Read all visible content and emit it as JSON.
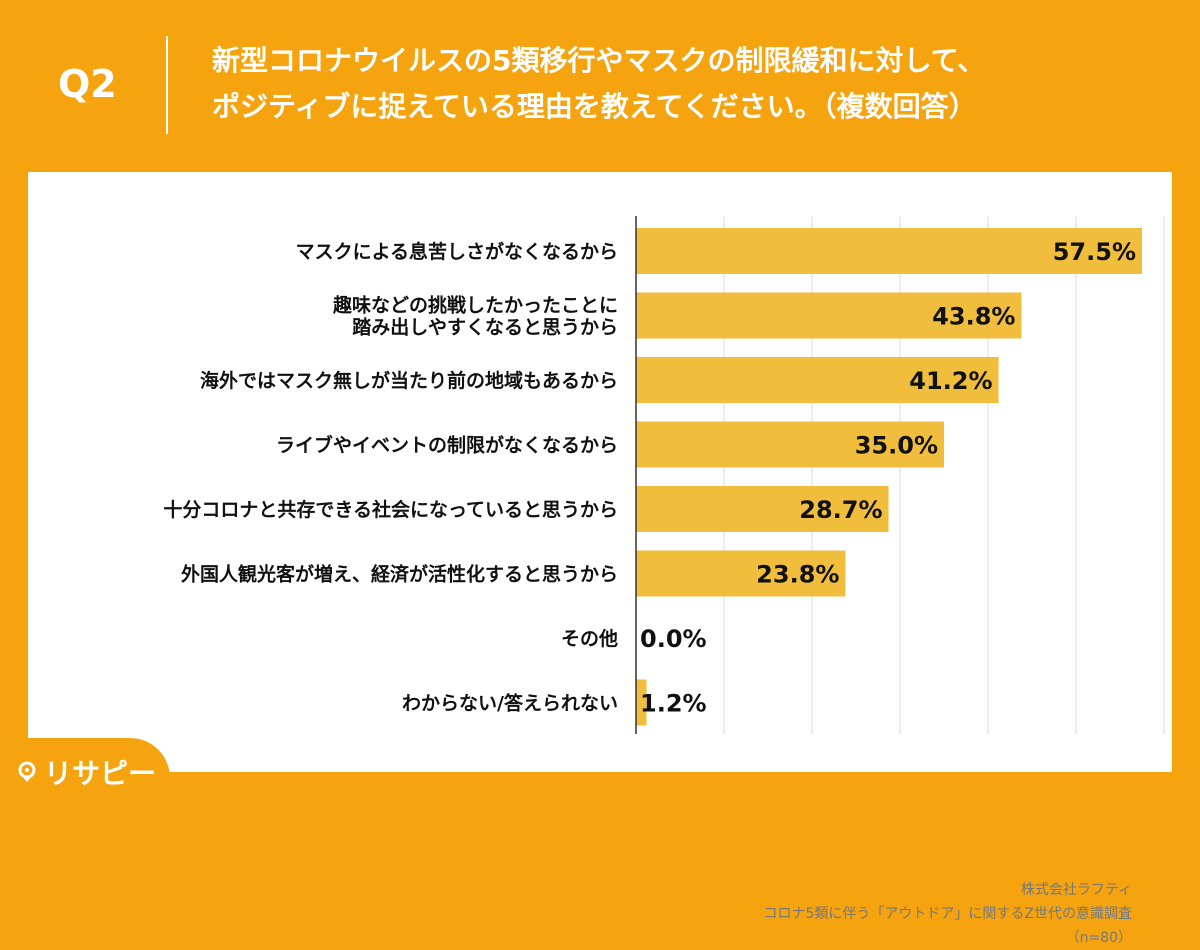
{
  "header": {
    "question_label": "Q2",
    "title_line1": "新型コロナウイルスの5類移行やマスクの制限緩和に対して、",
    "title_line2": "ポジティブに捉えている理由を教えてください。（複数回答）"
  },
  "colors": {
    "background": "#f5a30f",
    "bar": "#f0be3c",
    "text": "#111111",
    "grid": "#d9d9d9"
  },
  "chart_data": {
    "type": "bar",
    "orientation": "horizontal",
    "categories": [
      [
        "マスクによる息苦しさがなくなるから"
      ],
      [
        "趣味などの挑戦したかったことに",
        "踏み出しやすくなると思うから"
      ],
      [
        "海外ではマスク無しが当たり前の地域もあるから"
      ],
      [
        "ライブやイベントの制限がなくなるから"
      ],
      [
        "十分コロナと共存できる社会になっていると思うから"
      ],
      [
        "外国人観光客が増え、経済が活性化すると思うから"
      ],
      [
        "その他"
      ],
      [
        "わからない/答えられない"
      ]
    ],
    "values": [
      57.5,
      43.8,
      41.2,
      35.0,
      28.7,
      23.8,
      0.0,
      1.2
    ],
    "value_labels": [
      "57.5%",
      "43.8%",
      "41.2%",
      "35.0%",
      "28.7%",
      "23.8%",
      "0.0%",
      "1.2%"
    ],
    "xlim": [
      0,
      60
    ],
    "grid": true
  },
  "credits": {
    "company": "株式会社ラフティ",
    "survey": "コロナ5類に伴う「アウトドア」に関するZ世代の意識調査",
    "sample": "（n=80）"
  },
  "logo": {
    "text": "リサピー",
    "icon": "pin-icon"
  }
}
